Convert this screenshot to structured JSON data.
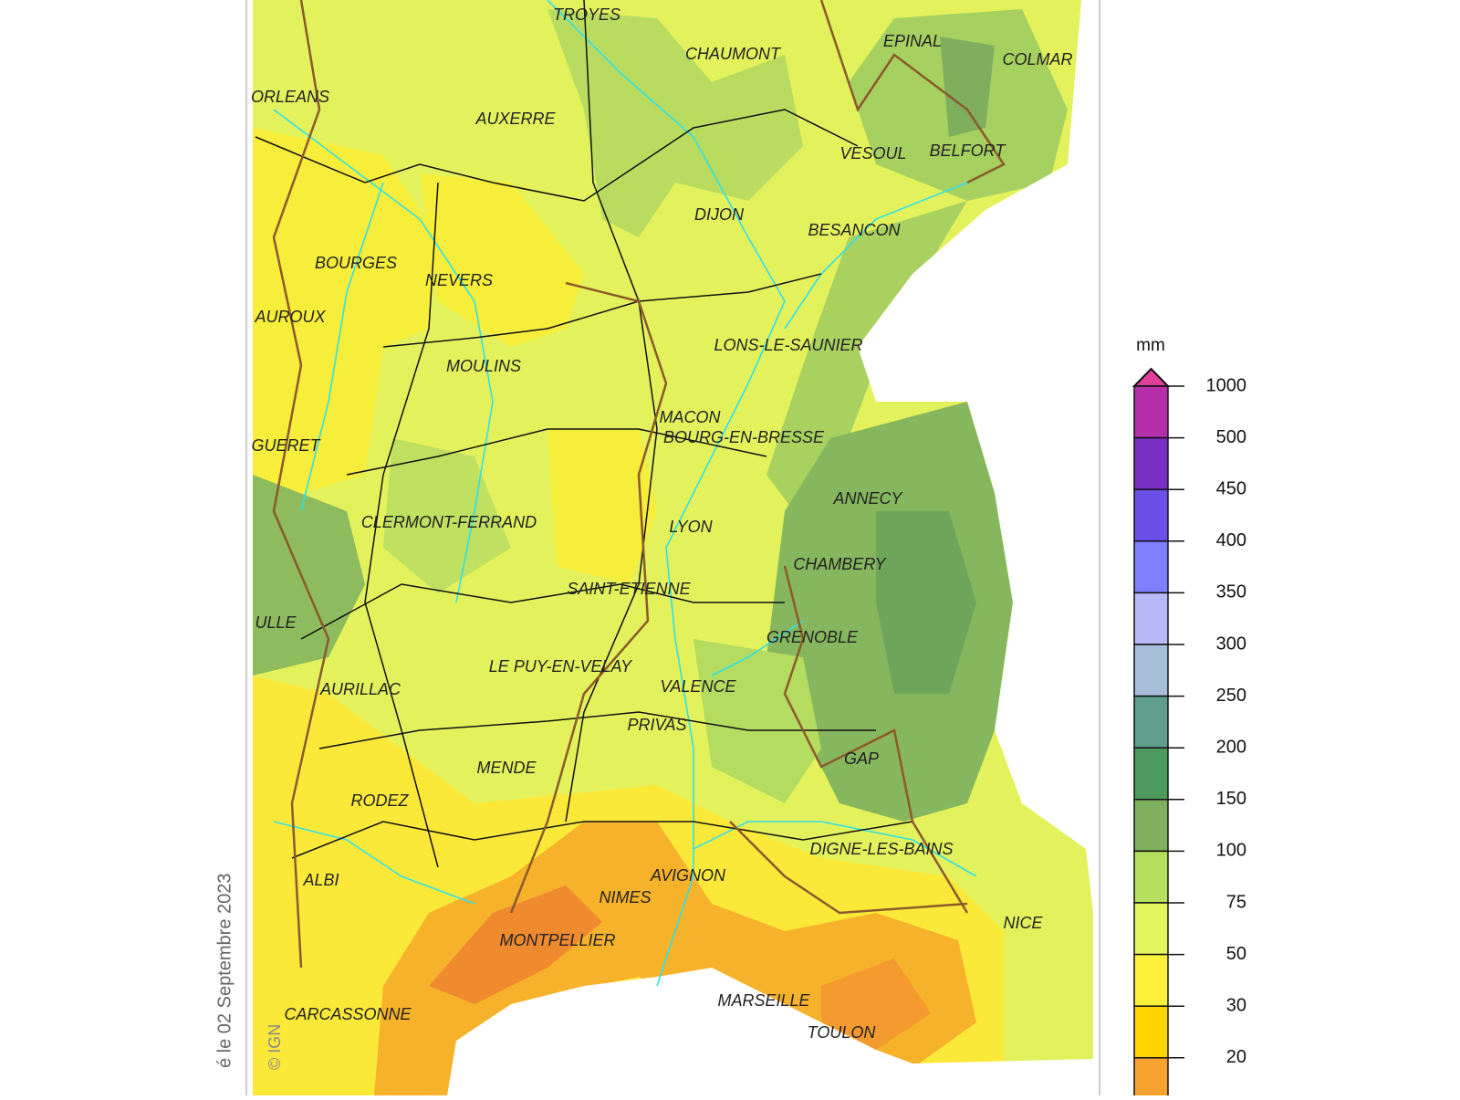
{
  "map": {
    "cities": [
      {
        "label": "TROYES"
      },
      {
        "label": "CHAUMONT"
      },
      {
        "label": "EPINAL"
      },
      {
        "label": "COLMAR"
      },
      {
        "label": "ORLEANS"
      },
      {
        "label": "AUXERRE"
      },
      {
        "label": "VESOUL"
      },
      {
        "label": "BELFORT"
      },
      {
        "label": "DIJON"
      },
      {
        "label": "BESANCON"
      },
      {
        "label": "BOURGES"
      },
      {
        "label": "NEVERS"
      },
      {
        "label": "AUROUX"
      },
      {
        "label": "LONS-LE-SAUNIER"
      },
      {
        "label": "MOULINS"
      },
      {
        "label": "MACON"
      },
      {
        "label": "BOURG-EN-BRESSE"
      },
      {
        "label": "GUERET"
      },
      {
        "label": "ANNECY"
      },
      {
        "label": "CLERMONT-FERRAND"
      },
      {
        "label": "LYON"
      },
      {
        "label": "CHAMBERY"
      },
      {
        "label": "SAINT-ETIENNE"
      },
      {
        "label": "ULLE"
      },
      {
        "label": "GRENOBLE"
      },
      {
        "label": "LE PUY-EN-VELAY"
      },
      {
        "label": "VALENCE"
      },
      {
        "label": "AURILLAC"
      },
      {
        "label": "PRIVAS"
      },
      {
        "label": "GAP"
      },
      {
        "label": "MENDE"
      },
      {
        "label": "RODEZ"
      },
      {
        "label": "DIGNE-LES-BAINS"
      },
      {
        "label": "AVIGNON"
      },
      {
        "label": "ALBI"
      },
      {
        "label": "NIMES"
      },
      {
        "label": "NICE"
      },
      {
        "label": "MONTPELLIER"
      },
      {
        "label": "MARSEILLE"
      },
      {
        "label": "CARCASSONNE"
      },
      {
        "label": "TOULON"
      }
    ]
  },
  "legend": {
    "unit": "mm",
    "levels": [
      1000,
      500,
      450,
      400,
      350,
      300,
      250,
      200,
      150,
      100,
      75,
      50,
      30,
      20
    ],
    "colors": [
      "#e0409a",
      "#b52fa8",
      "#7a2fc4",
      "#6a4fe6",
      "#7f80ff",
      "#b9b9f7",
      "#a8bfd9",
      "#5e9e8a",
      "#4d9b5c",
      "#7fb05e",
      "#b5df5e",
      "#e4f55c",
      "#fff13a",
      "#ffd400",
      "#f7a330"
    ]
  },
  "footer": {
    "date": "é le 02 Septembre 2023",
    "credit": "© IGN"
  }
}
